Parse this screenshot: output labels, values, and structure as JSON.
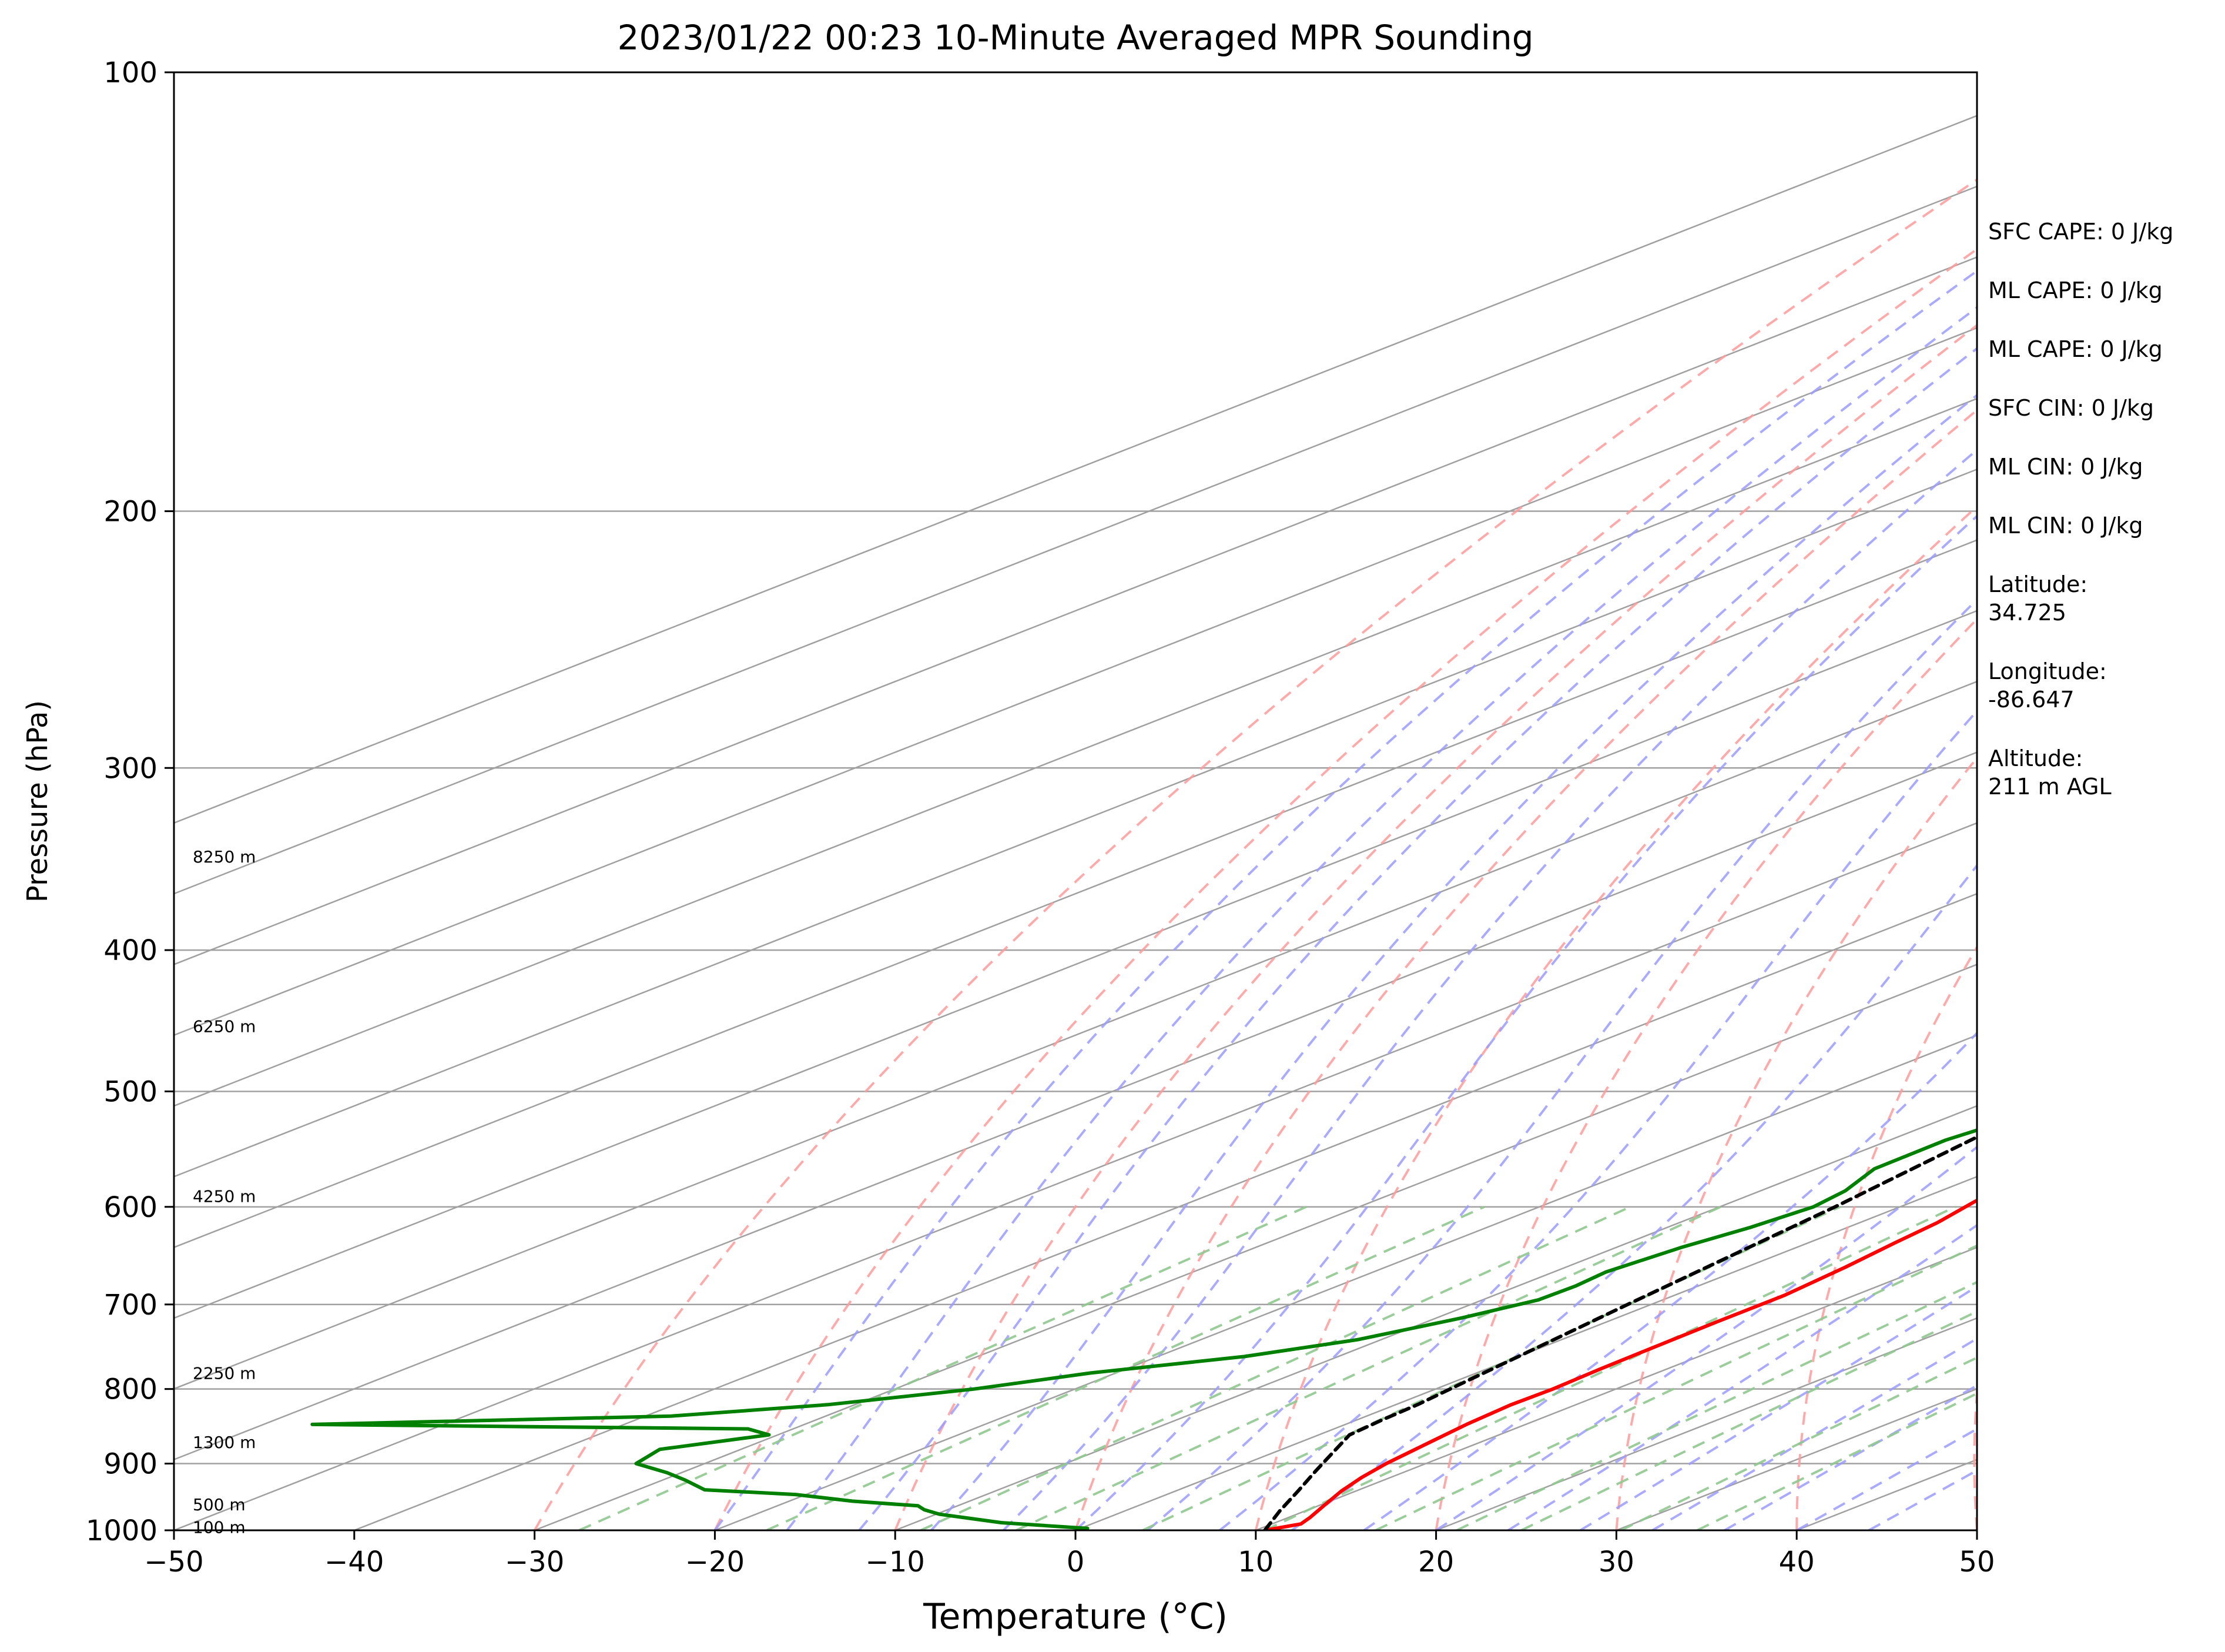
{
  "chart_data": {
    "type": "line",
    "chart_kind": "skew-T log-P sounding",
    "title": "2023/01/22 00:23 10-Minute Averaged MPR Sounding",
    "xlabel": "Temperature (°C)",
    "ylabel": "Pressure (hPa)",
    "xlim": [
      -50,
      50
    ],
    "ylim": [
      1000,
      100
    ],
    "y_scale": "log",
    "x_ticks": [
      "−50",
      "−40",
      "−30",
      "−20",
      "−10",
      "0",
      "10",
      "20",
      "30",
      "40",
      "50"
    ],
    "x_tick_values": [
      -50,
      -40,
      -30,
      -20,
      -10,
      0,
      10,
      20,
      30,
      40,
      50
    ],
    "y_ticks": [
      "100",
      "200",
      "300",
      "400",
      "500",
      "600",
      "700",
      "800",
      "900",
      "1000"
    ],
    "y_tick_values": [
      100,
      200,
      300,
      400,
      500,
      600,
      700,
      800,
      900,
      1000
    ],
    "grid": true,
    "height_labels": [
      {
        "text": "8250 m",
        "p": 345
      },
      {
        "text": "6250 m",
        "p": 451
      },
      {
        "text": "4250 m",
        "p": 590
      },
      {
        "text": "2250 m",
        "p": 780
      },
      {
        "text": "1300 m",
        "p": 870
      },
      {
        "text": "500 m",
        "p": 960
      },
      {
        "text": "100 m",
        "p": 995
      }
    ],
    "series": [
      {
        "role": "temperature",
        "color": "#ff0000",
        "points": [
          [
            1000,
            10.5
          ],
          [
            990,
            11.6
          ],
          [
            980,
            11.2
          ],
          [
            960,
            10.2
          ],
          [
            940,
            9.2
          ],
          [
            920,
            8.4
          ],
          [
            900,
            7.8
          ],
          [
            870,
            7.2
          ],
          [
            845,
            6.7
          ],
          [
            820,
            6.4
          ],
          [
            800,
            6.5
          ],
          [
            775,
            6.3
          ],
          [
            750,
            6.2
          ],
          [
            720,
            6.1
          ],
          [
            690,
            6.1
          ],
          [
            660,
            5.5
          ],
          [
            635,
            4.8
          ],
          [
            615,
            4.3
          ],
          [
            595,
            3.4
          ],
          [
            575,
            2.7
          ],
          [
            555,
            1.9
          ],
          [
            535,
            1.3
          ],
          [
            520,
            0.7
          ],
          [
            495,
            -0.5
          ],
          [
            470,
            -2.2
          ],
          [
            445,
            -4.2
          ],
          [
            420,
            -6.4
          ],
          [
            395,
            -8.6
          ],
          [
            370,
            -11.1
          ],
          [
            345,
            -13.7
          ],
          [
            325,
            -16.4
          ],
          [
            305,
            -19.0
          ],
          [
            285,
            -21.4
          ],
          [
            265,
            -23.7
          ]
        ]
      },
      {
        "role": "dewpoint",
        "color": "#008000",
        "points": [
          [
            997,
            0.4
          ],
          [
            988,
            -5.2
          ],
          [
            975,
            -9.8
          ],
          [
            968,
            -11.3
          ],
          [
            962,
            -12.2
          ],
          [
            955,
            -16.5
          ],
          [
            945,
            -20.6
          ],
          [
            938,
            -26.3
          ],
          [
            924,
            -28.7
          ],
          [
            913,
            -30.8
          ],
          [
            900,
            -33.8
          ],
          [
            880,
            -34.5
          ],
          [
            860,
            -30.5
          ],
          [
            852,
            -32.5
          ],
          [
            846,
            -57.3
          ],
          [
            835,
            -38.6
          ],
          [
            820,
            -31.5
          ],
          [
            800,
            -25.6
          ],
          [
            780,
            -21.4
          ],
          [
            760,
            -15.2
          ],
          [
            740,
            -11.3
          ],
          [
            715,
            -8.6
          ],
          [
            695,
            -6.9
          ],
          [
            680,
            -6.8
          ],
          [
            665,
            -7.1
          ],
          [
            640,
            -6.4
          ],
          [
            620,
            -5.4
          ],
          [
            600,
            -4.8
          ],
          [
            585,
            -5.3
          ],
          [
            565,
            -6.8
          ],
          [
            540,
            -6.9
          ],
          [
            515,
            -5.9
          ],
          [
            490,
            -5.0
          ],
          [
            470,
            -4.3
          ],
          [
            445,
            -4.2
          ],
          [
            420,
            -5.9
          ],
          [
            400,
            -7.0
          ],
          [
            375,
            -8.4
          ],
          [
            360,
            -9.7
          ],
          [
            348,
            -11.3
          ],
          [
            337,
            -11.5
          ],
          [
            322,
            -11.3
          ],
          [
            305,
            -14.6
          ],
          [
            292,
            -17.8
          ],
          [
            285,
            -17.6
          ],
          [
            275,
            -17.7
          ],
          [
            269,
            -19.3
          ],
          [
            264,
            -18.7
          ],
          [
            258,
            -18.4
          ]
        ]
      },
      {
        "role": "parcel",
        "color": "#000000",
        "dashed": true,
        "points": [
          [
            1000,
            10.5
          ],
          [
            970,
            8.6
          ],
          [
            940,
            6.8
          ],
          [
            910,
            4.9
          ],
          [
            880,
            3.0
          ],
          [
            860,
            1.7
          ],
          [
            840,
            1.4
          ],
          [
            820,
            1.2
          ],
          [
            790,
            0.6
          ],
          [
            760,
            0.0
          ],
          [
            700,
            -1.3
          ],
          [
            600,
            -3.6
          ],
          [
            500,
            -6.9
          ],
          [
            400,
            -12.2
          ],
          [
            300,
            -21.7
          ],
          [
            265,
            -26.6
          ]
        ]
      }
    ]
  },
  "side_info": [
    "SFC CAPE: 0 J/kg",
    "ML CAPE: 0 J/kg",
    "ML CAPE: 0 J/kg",
    "SFC CIN: 0 J/kg",
    "ML CIN: 0 J/kg",
    "ML CIN: 0 J/kg",
    "Latitude:\n34.725",
    "Longitude:\n-86.647",
    "Altitude:\n211 m AGL"
  ],
  "colors": {
    "isotherm": "#a0a0a0",
    "isobar": "#a0a0a0",
    "dry_adiabat": "#ff9b9b",
    "moist_adiabat": "#9b9bff",
    "mixing_ratio": "#90c890"
  }
}
